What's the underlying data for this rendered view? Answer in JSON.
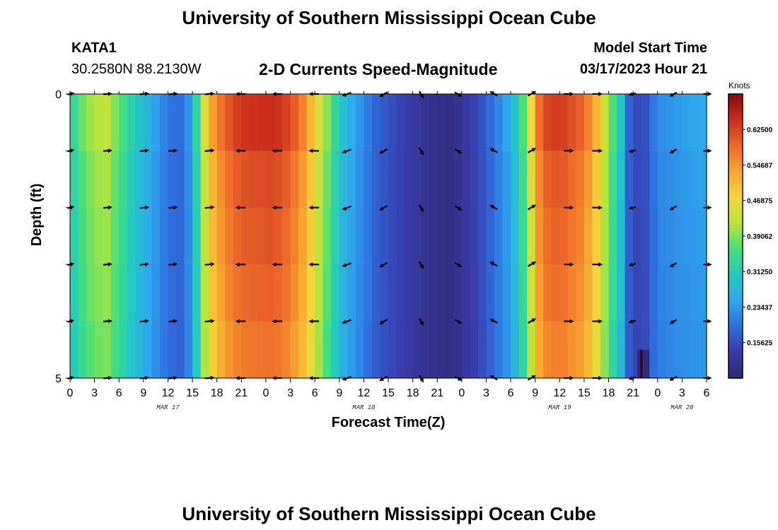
{
  "header": {
    "title": "University of Southern Mississippi Ocean Cube",
    "station_id": "KATA1",
    "station_coords": "30.2580N  88.2130W",
    "subtitle": "2-D Currents Speed-Magnitude",
    "model_start_label": "Model Start Time",
    "model_start_value": "03/17/2023 Hour 21"
  },
  "footer": {
    "title": "University of Southern Mississippi Ocean Cube"
  },
  "colors": {
    "ramp": [
      "#2a2a6e",
      "#3a3aa8",
      "#2f6fe0",
      "#2fa8ee",
      "#22c9c2",
      "#44de7c",
      "#b6e53a",
      "#f3d83a",
      "#f7a72f",
      "#ee6a2a",
      "#cc2f1d",
      "#8a0c0c"
    ]
  },
  "chart_data": {
    "type": "heatmap",
    "title": "2-D Currents Speed-Magnitude",
    "xlabel": "Forecast Time(Z)",
    "ylabel": "Depth (ft)",
    "x_hours": [
      0,
      3,
      6,
      9,
      12,
      15,
      18,
      21,
      24,
      27,
      30,
      33,
      36,
      39,
      42,
      45,
      48,
      51,
      54,
      57,
      60,
      63,
      66,
      69,
      72,
      75,
      78
    ],
    "x_tick_labels": [
      "0",
      "3",
      "6",
      "9",
      "12",
      "15",
      "18",
      "21",
      "0",
      "3",
      "6",
      "9",
      "12",
      "15",
      "18",
      "21",
      "0",
      "3",
      "6",
      "9",
      "12",
      "15",
      "18",
      "21",
      "0",
      "3",
      "6"
    ],
    "date_labels": [
      {
        "text": "MAR 17",
        "hour": 12
      },
      {
        "text": "MAR 18",
        "hour": 36
      },
      {
        "text": "MAR 19",
        "hour": 60
      },
      {
        "text": "MAR 20",
        "hour": 75
      }
    ],
    "y_range": [
      0,
      5
    ],
    "y_tick_labels": [
      "0",
      "5"
    ],
    "depth_levels": [
      0,
      1,
      2,
      3,
      4,
      5
    ],
    "colorbar": {
      "label": "Knots",
      "range": [
        0.078,
        0.703
      ],
      "tick_values": [
        0.15625,
        0.234375,
        0.3125,
        0.390625,
        0.46875,
        0.546875,
        0.625
      ],
      "tick_labels": [
        "0.15625",
        "0.23437",
        "0.31250",
        "0.39062",
        "0.46875",
        "0.54687",
        "0.62500"
      ]
    },
    "speed_profile_hours": [
      0,
      0.6,
      1.5,
      3,
      4.5,
      7,
      9,
      10.5,
      12,
      13.5,
      14.5,
      15.5,
      17,
      19,
      21,
      25,
      27,
      29,
      30.5,
      32,
      33,
      34,
      35,
      36,
      37.5,
      40,
      42,
      44,
      46.5,
      48,
      50,
      52,
      54,
      55,
      56,
      57,
      58,
      60,
      61,
      62.5,
      64,
      66,
      67.5,
      68.5,
      69,
      70.5,
      72,
      75,
      78
    ],
    "speed_profile_knots": [
      0.3,
      0.35,
      0.38,
      0.42,
      0.43,
      0.34,
      0.28,
      0.24,
      0.2,
      0.19,
      0.23,
      0.33,
      0.52,
      0.6,
      0.64,
      0.65,
      0.62,
      0.55,
      0.45,
      0.37,
      0.3,
      0.27,
      0.24,
      0.22,
      0.18,
      0.15,
      0.13,
      0.11,
      0.1,
      0.12,
      0.15,
      0.2,
      0.26,
      0.33,
      0.4,
      0.55,
      0.62,
      0.64,
      0.62,
      0.6,
      0.55,
      0.4,
      0.3,
      0.18,
      0.15,
      0.16,
      0.22,
      0.24,
      0.25
    ],
    "depth_factors": [
      1.0,
      0.95,
      0.93,
      0.91,
      0.88,
      0.84
    ],
    "anomaly": {
      "hour_start": 69.5,
      "hour_end": 71,
      "depth_start": 4.5,
      "depth_end": 5,
      "knots": 0.09
    },
    "arrow_hours": [
      0,
      4.5,
      9,
      12.5,
      17,
      21,
      25.5,
      30,
      34,
      38.5,
      43,
      47.5,
      52,
      56.5,
      61,
      64.5,
      69,
      74,
      78
    ],
    "arrow_directions_deg": [
      15,
      5,
      5,
      5,
      5,
      180,
      180,
      180,
      200,
      210,
      300,
      330,
      150,
      30,
      0,
      0,
      195,
      210,
      0
    ],
    "arrow_length_scale": [
      0.55,
      0.75,
      0.8,
      0.8,
      0.85,
      0.9,
      0.9,
      0.9,
      0.85,
      0.8,
      0.7,
      0.7,
      0.75,
      0.8,
      0.85,
      0.9,
      0.6,
      0.7,
      0.7
    ]
  }
}
